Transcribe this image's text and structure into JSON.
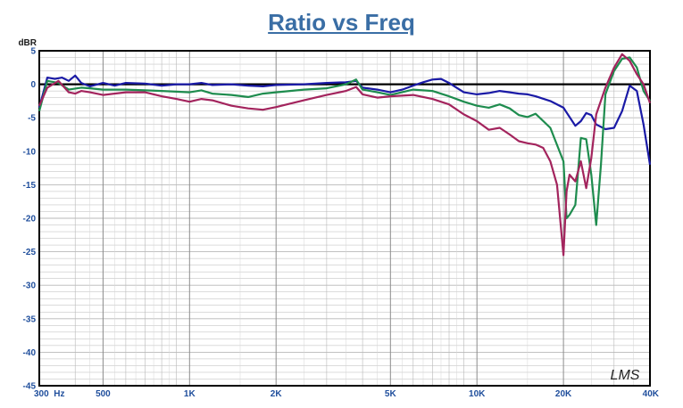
{
  "chart_data": {
    "type": "line",
    "title": "Ratio vs Freq",
    "ylabel": "dBR",
    "xscale": "log",
    "xlim": [
      300,
      40000
    ],
    "ylim": [
      -45,
      5
    ],
    "y_ticks": [
      5,
      0,
      -5,
      -10,
      -15,
      -20,
      -25,
      -30,
      -35,
      -40,
      -45
    ],
    "x_ticks": [
      {
        "value": 300,
        "label": "300  Hz"
      },
      {
        "value": 500,
        "label": "500"
      },
      {
        "value": 1000,
        "label": "1K"
      },
      {
        "value": 2000,
        "label": "2K"
      },
      {
        "value": 5000,
        "label": "5K"
      },
      {
        "value": 10000,
        "label": "10K"
      },
      {
        "value": 20000,
        "label": "20K"
      },
      {
        "value": 40000,
        "label": "40K"
      }
    ],
    "grid": true,
    "watermark": "LMS",
    "colors": {
      "series_blue": "#1a1aa6",
      "series_green": "#1e8c4e",
      "series_magenta": "#a3245d",
      "grid": "#b8b8b8",
      "tick_text": "#1f4e9c",
      "title": "#3a6ea5"
    },
    "series": [
      {
        "color": "#1a1aa6",
        "points": [
          [
            300,
            -3.5
          ],
          [
            320,
            1.0
          ],
          [
            340,
            0.8
          ],
          [
            360,
            1.0
          ],
          [
            380,
            0.5
          ],
          [
            400,
            1.3
          ],
          [
            420,
            0.2
          ],
          [
            450,
            -0.3
          ],
          [
            500,
            0.2
          ],
          [
            550,
            -0.2
          ],
          [
            600,
            0.2
          ],
          [
            700,
            0.1
          ],
          [
            800,
            -0.2
          ],
          [
            900,
            0.0
          ],
          [
            1000,
            0.0
          ],
          [
            1100,
            0.2
          ],
          [
            1200,
            -0.1
          ],
          [
            1400,
            0.0
          ],
          [
            1600,
            -0.2
          ],
          [
            1800,
            -0.3
          ],
          [
            2000,
            -0.1
          ],
          [
            2500,
            0.0
          ],
          [
            3000,
            0.2
          ],
          [
            3500,
            0.3
          ],
          [
            3800,
            0.5
          ],
          [
            4000,
            -0.5
          ],
          [
            4500,
            -0.8
          ],
          [
            5000,
            -1.2
          ],
          [
            5500,
            -0.8
          ],
          [
            6000,
            -0.2
          ],
          [
            6500,
            0.3
          ],
          [
            7000,
            0.7
          ],
          [
            7500,
            0.8
          ],
          [
            8000,
            0.2
          ],
          [
            9000,
            -1.2
          ],
          [
            10000,
            -1.5
          ],
          [
            11000,
            -1.3
          ],
          [
            12000,
            -1.0
          ],
          [
            13000,
            -1.2
          ],
          [
            14000,
            -1.4
          ],
          [
            15000,
            -1.5
          ],
          [
            16000,
            -1.8
          ],
          [
            18000,
            -2.5
          ],
          [
            20000,
            -3.5
          ],
          [
            22000,
            -6.2
          ],
          [
            23000,
            -5.5
          ],
          [
            24000,
            -4.3
          ],
          [
            25000,
            -4.6
          ],
          [
            26000,
            -6.0
          ],
          [
            28000,
            -6.7
          ],
          [
            30000,
            -6.5
          ],
          [
            32000,
            -4.0
          ],
          [
            34000,
            -0.2
          ],
          [
            36000,
            -1.0
          ],
          [
            38000,
            -6.0
          ],
          [
            40000,
            -12.0
          ]
        ]
      },
      {
        "color": "#1e8c4e",
        "points": [
          [
            300,
            -4.0
          ],
          [
            320,
            0.5
          ],
          [
            350,
            0.2
          ],
          [
            380,
            -0.8
          ],
          [
            420,
            -0.5
          ],
          [
            450,
            -0.6
          ],
          [
            500,
            -0.8
          ],
          [
            600,
            -0.8
          ],
          [
            700,
            -0.9
          ],
          [
            800,
            -1.0
          ],
          [
            900,
            -1.1
          ],
          [
            1000,
            -1.2
          ],
          [
            1100,
            -0.9
          ],
          [
            1200,
            -1.4
          ],
          [
            1400,
            -1.6
          ],
          [
            1600,
            -1.9
          ],
          [
            1800,
            -1.4
          ],
          [
            2000,
            -1.2
          ],
          [
            2500,
            -0.8
          ],
          [
            3000,
            -0.6
          ],
          [
            3500,
            0.0
          ],
          [
            3800,
            0.7
          ],
          [
            4000,
            -0.8
          ],
          [
            4500,
            -1.2
          ],
          [
            5000,
            -1.6
          ],
          [
            6000,
            -0.8
          ],
          [
            7000,
            -1.0
          ],
          [
            8000,
            -1.8
          ],
          [
            9000,
            -2.6
          ],
          [
            10000,
            -3.2
          ],
          [
            11000,
            -3.5
          ],
          [
            12000,
            -3.0
          ],
          [
            13000,
            -3.6
          ],
          [
            14000,
            -4.6
          ],
          [
            15000,
            -4.9
          ],
          [
            16000,
            -4.4
          ],
          [
            18000,
            -6.5
          ],
          [
            20000,
            -11.5
          ],
          [
            20500,
            -20.0
          ],
          [
            21000,
            -19.5
          ],
          [
            22000,
            -18.0
          ],
          [
            23000,
            -8.0
          ],
          [
            24000,
            -8.2
          ],
          [
            25000,
            -13.5
          ],
          [
            26000,
            -21.0
          ],
          [
            27000,
            -12.0
          ],
          [
            28000,
            -1.5
          ],
          [
            30000,
            2.0
          ],
          [
            32000,
            3.8
          ],
          [
            34000,
            4.0
          ],
          [
            36000,
            2.5
          ],
          [
            38000,
            -1.0
          ],
          [
            40000,
            -2.5
          ]
        ]
      },
      {
        "color": "#a3245d",
        "points": [
          [
            300,
            -3.2
          ],
          [
            320,
            -0.5
          ],
          [
            350,
            0.5
          ],
          [
            380,
            -1.2
          ],
          [
            400,
            -1.4
          ],
          [
            420,
            -1.0
          ],
          [
            450,
            -1.2
          ],
          [
            500,
            -1.6
          ],
          [
            600,
            -1.2
          ],
          [
            700,
            -1.2
          ],
          [
            800,
            -1.8
          ],
          [
            900,
            -2.2
          ],
          [
            1000,
            -2.6
          ],
          [
            1100,
            -2.2
          ],
          [
            1200,
            -2.4
          ],
          [
            1400,
            -3.2
          ],
          [
            1600,
            -3.6
          ],
          [
            1800,
            -3.8
          ],
          [
            2000,
            -3.4
          ],
          [
            2500,
            -2.4
          ],
          [
            3000,
            -1.6
          ],
          [
            3500,
            -1.0
          ],
          [
            3800,
            -0.4
          ],
          [
            4000,
            -1.5
          ],
          [
            4500,
            -2.0
          ],
          [
            5000,
            -1.8
          ],
          [
            6000,
            -1.6
          ],
          [
            7000,
            -2.2
          ],
          [
            8000,
            -3.0
          ],
          [
            9000,
            -4.5
          ],
          [
            10000,
            -5.5
          ],
          [
            11000,
            -6.8
          ],
          [
            12000,
            -6.5
          ],
          [
            13000,
            -7.5
          ],
          [
            14000,
            -8.5
          ],
          [
            15000,
            -8.8
          ],
          [
            16000,
            -9.0
          ],
          [
            17000,
            -9.5
          ],
          [
            18000,
            -11.5
          ],
          [
            19000,
            -15.0
          ],
          [
            20000,
            -25.5
          ],
          [
            20500,
            -16.0
          ],
          [
            21000,
            -13.5
          ],
          [
            22000,
            -14.5
          ],
          [
            23000,
            -11.5
          ],
          [
            24000,
            -15.5
          ],
          [
            25000,
            -11.0
          ],
          [
            26000,
            -4.5
          ],
          [
            28000,
            -0.5
          ],
          [
            30000,
            2.5
          ],
          [
            32000,
            4.5
          ],
          [
            34000,
            3.5
          ],
          [
            36000,
            1.5
          ],
          [
            38000,
            0.0
          ],
          [
            40000,
            -2.8
          ]
        ]
      }
    ]
  }
}
